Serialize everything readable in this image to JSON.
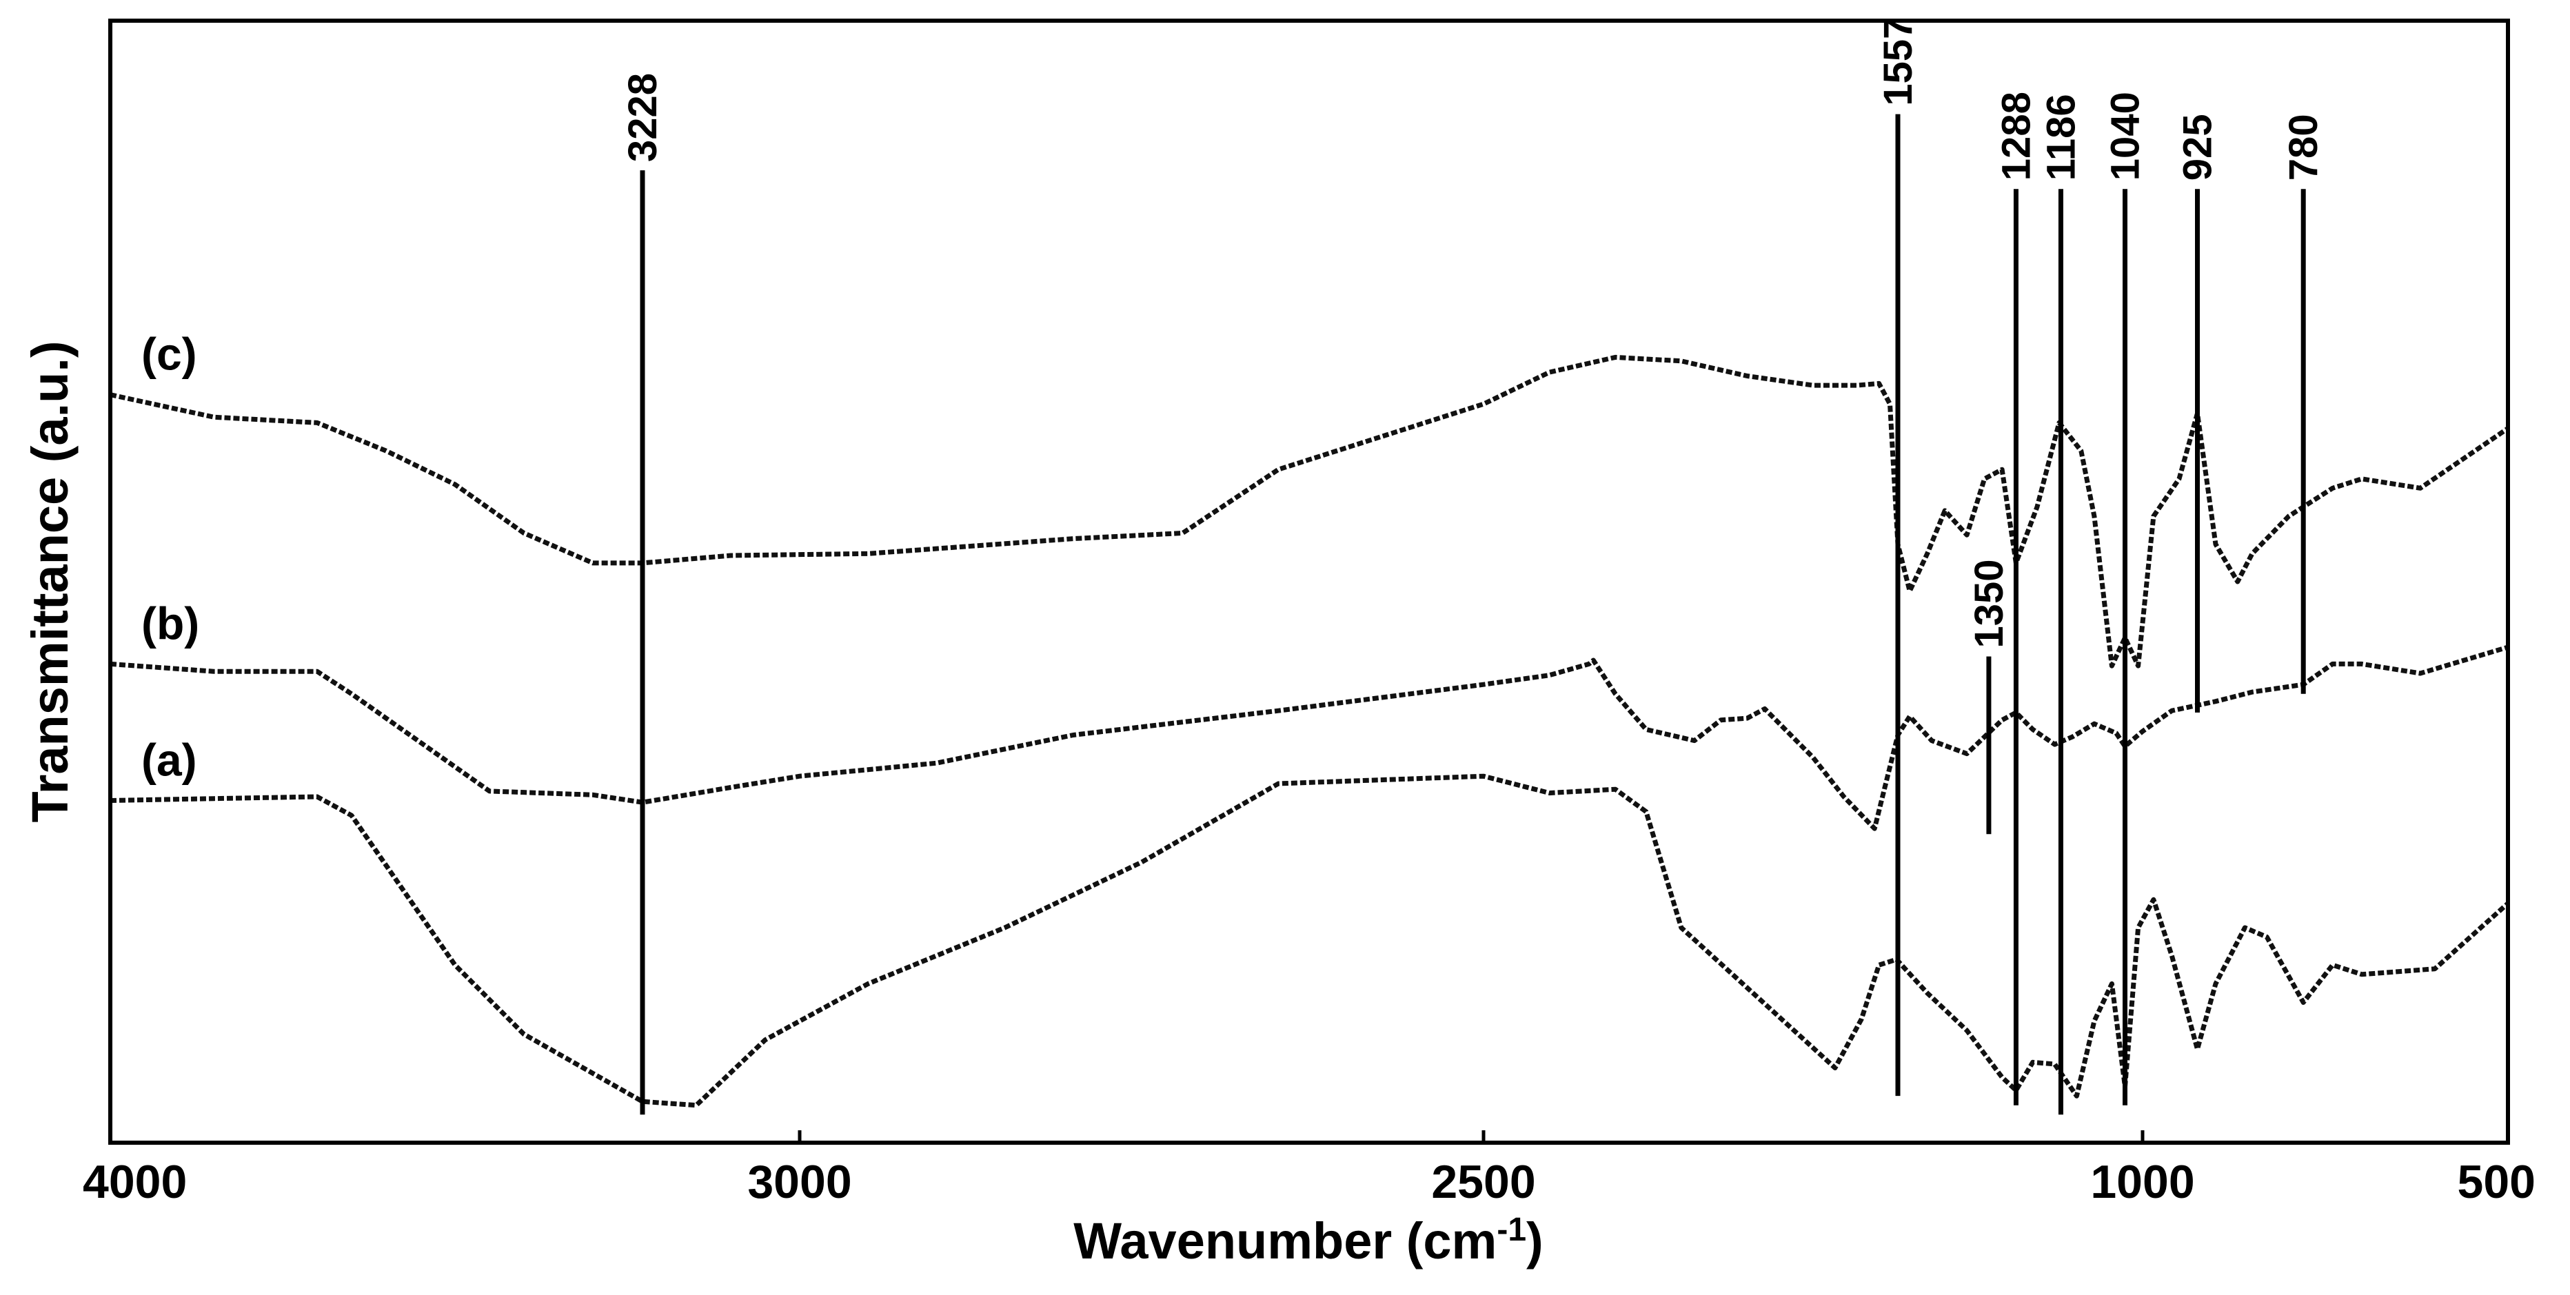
{
  "chart_data": {
    "type": "line",
    "title": "",
    "xlabel": "Wavenumber (cm",
    "xlabel_sup": "-1",
    "xlabel_close": ")",
    "ylabel": "Transmittance (a.u.)",
    "xlim": [
      4000,
      500
    ],
    "x_ticks": [
      4000,
      3000,
      2500,
      1000,
      500
    ],
    "series": [
      {
        "name": "(a)",
        "points": [
          [
            4000,
            18.3
          ],
          [
            3850,
            18.4
          ],
          [
            3700,
            18.5
          ],
          [
            3650,
            17.5
          ],
          [
            3500,
            9.5
          ],
          [
            3400,
            5.8
          ],
          [
            3228,
            2.2
          ],
          [
            3150,
            2.0
          ],
          [
            3050,
            5.5
          ],
          [
            2950,
            8.5
          ],
          [
            2850,
            11.5
          ],
          [
            2750,
            15
          ],
          [
            2650,
            19.2
          ],
          [
            2500,
            19.6
          ],
          [
            2350,
            18.7
          ],
          [
            2200,
            18.9
          ],
          [
            2130,
            17.7
          ],
          [
            2050,
            11.5
          ],
          [
            1700,
            4.0
          ],
          [
            1640,
            6.6
          ],
          [
            1600,
            9.5
          ],
          [
            1560,
            9.8
          ],
          [
            1490,
            8.0
          ],
          [
            1400,
            6.0
          ],
          [
            1320,
            3.5
          ],
          [
            1288,
            2.8
          ],
          [
            1250,
            4.3
          ],
          [
            1200,
            4.2
          ],
          [
            1150,
            2.5
          ],
          [
            1110,
            6.5
          ],
          [
            1070,
            8.5
          ],
          [
            1040,
            3.0
          ],
          [
            1010,
            11.5
          ],
          [
            985,
            13.0
          ],
          [
            960,
            10.0
          ],
          [
            925,
            5.0
          ],
          [
            900,
            8.5
          ],
          [
            860,
            11.5
          ],
          [
            830,
            11.0
          ],
          [
            780,
            7.5
          ],
          [
            740,
            9.5
          ],
          [
            700,
            9.0
          ],
          [
            600,
            9.3
          ],
          [
            500,
            12.8
          ]
        ]
      },
      {
        "name": "(b)",
        "points": [
          [
            4000,
            25.6
          ],
          [
            3850,
            25.2
          ],
          [
            3700,
            25.2
          ],
          [
            3650,
            24.0
          ],
          [
            3550,
            21.4
          ],
          [
            3450,
            18.8
          ],
          [
            3300,
            18.6
          ],
          [
            3228,
            18.2
          ],
          [
            3100,
            19.0
          ],
          [
            3000,
            19.6
          ],
          [
            2900,
            20.3
          ],
          [
            2800,
            21.8
          ],
          [
            2650,
            23.1
          ],
          [
            2500,
            24.5
          ],
          [
            2350,
            25.0
          ],
          [
            2260,
            25.6
          ],
          [
            2250,
            25.8
          ],
          [
            2200,
            24.0
          ],
          [
            2130,
            22.1
          ],
          [
            2020,
            21.5
          ],
          [
            1960,
            22.6
          ],
          [
            1900,
            22.7
          ],
          [
            1860,
            23.2
          ],
          [
            1750,
            20.6
          ],
          [
            1680,
            18.5
          ],
          [
            1610,
            16.8
          ],
          [
            1557,
            21.8
          ],
          [
            1530,
            22.8
          ],
          [
            1480,
            21.5
          ],
          [
            1400,
            20.8
          ],
          [
            1320,
            22.6
          ],
          [
            1288,
            23.0
          ],
          [
            1250,
            22.1
          ],
          [
            1200,
            21.3
          ],
          [
            1160,
            21.7
          ],
          [
            1110,
            22.4
          ],
          [
            1060,
            21.9
          ],
          [
            1040,
            21.2
          ],
          [
            1000,
            22.0
          ],
          [
            960,
            23.1
          ],
          [
            900,
            23.6
          ],
          [
            850,
            24.1
          ],
          [
            780,
            24.5
          ],
          [
            740,
            25.6
          ],
          [
            700,
            25.6
          ],
          [
            620,
            25.1
          ],
          [
            500,
            26.5
          ]
        ]
      },
      {
        "name": "(c)",
        "points": [
          [
            4000,
            40.0
          ],
          [
            3850,
            38.8
          ],
          [
            3700,
            38.5
          ],
          [
            3600,
            37.0
          ],
          [
            3500,
            35.2
          ],
          [
            3400,
            32.6
          ],
          [
            3300,
            31.0
          ],
          [
            3228,
            31.0
          ],
          [
            3100,
            31.4
          ],
          [
            2950,
            31.5
          ],
          [
            2800,
            32.3
          ],
          [
            2720,
            32.6
          ],
          [
            2650,
            36.0
          ],
          [
            2500,
            39.5
          ],
          [
            2350,
            41.2
          ],
          [
            2200,
            42.0
          ],
          [
            2050,
            41.8
          ],
          [
            1900,
            41.0
          ],
          [
            1750,
            40.5
          ],
          [
            1650,
            40.5
          ],
          [
            1600,
            40.6
          ],
          [
            1575,
            39.5
          ],
          [
            1557,
            32.0
          ],
          [
            1530,
            29.5
          ],
          [
            1490,
            31.5
          ],
          [
            1450,
            33.8
          ],
          [
            1400,
            32.5
          ],
          [
            1360,
            35.5
          ],
          [
            1320,
            36.0
          ],
          [
            1288,
            31.0
          ],
          [
            1240,
            34.0
          ],
          [
            1190,
            38.5
          ],
          [
            1140,
            37.0
          ],
          [
            1110,
            33.5
          ],
          [
            1070,
            25.5
          ],
          [
            1040,
            27.0
          ],
          [
            1010,
            25.5
          ],
          [
            985,
            33.5
          ],
          [
            950,
            35.5
          ],
          [
            925,
            39.0
          ],
          [
            900,
            32.0
          ],
          [
            870,
            30.0
          ],
          [
            850,
            31.5
          ],
          [
            800,
            33.5
          ],
          [
            740,
            35.0
          ],
          [
            700,
            35.5
          ],
          [
            620,
            35.0
          ],
          [
            500,
            38.2
          ]
        ]
      }
    ],
    "series_labels": [
      "(c)",
      "(b)",
      "(a)"
    ],
    "peak_markers": [
      {
        "label": "3228",
        "x": 3228,
        "y_top": 52,
        "y_bottom": 1.5
      },
      {
        "label": "1557",
        "x": 1557,
        "y_top": 55,
        "y_bottom": 2.5
      },
      {
        "label": "1288",
        "x": 1288,
        "y_top": 51,
        "y_bottom": 2.0
      },
      {
        "label": "1186",
        "x": 1186,
        "y_top": 51,
        "y_bottom": 1.5
      },
      {
        "label": "1040",
        "x": 1040,
        "y_top": 51,
        "y_bottom": 2.0
      },
      {
        "label": "925",
        "x": 925,
        "y_top": 51,
        "y_bottom": 23.0
      },
      {
        "label": "780",
        "x": 780,
        "y_top": 51,
        "y_bottom": 24.0
      },
      {
        "label": "1350",
        "x": 1350,
        "y_top": 26.0,
        "y_bottom": 16.5
      }
    ]
  }
}
